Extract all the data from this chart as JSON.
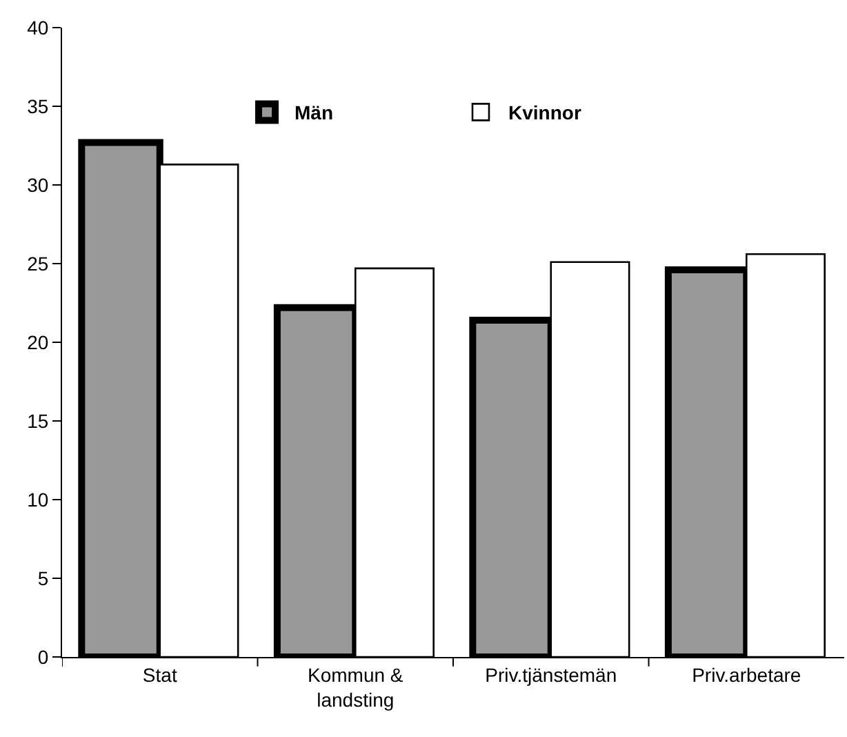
{
  "chart_data": {
    "type": "bar",
    "categories": [
      "Stat",
      "Kommun & landsting",
      "Priv.tjänstemän",
      "Priv.arbetare"
    ],
    "series": [
      {
        "name": "Män",
        "color": "#999999",
        "values": [
          32.7,
          22.2,
          21.4,
          24.6
        ]
      },
      {
        "name": "Kvinnor",
        "color": "#ffffff",
        "values": [
          31.3,
          24.7,
          25.1,
          25.6
        ]
      }
    ],
    "ylim": [
      0,
      40
    ],
    "yticks": [
      0,
      5,
      10,
      15,
      20,
      25,
      30,
      35,
      40
    ],
    "grid": false,
    "legend": "top"
  }
}
